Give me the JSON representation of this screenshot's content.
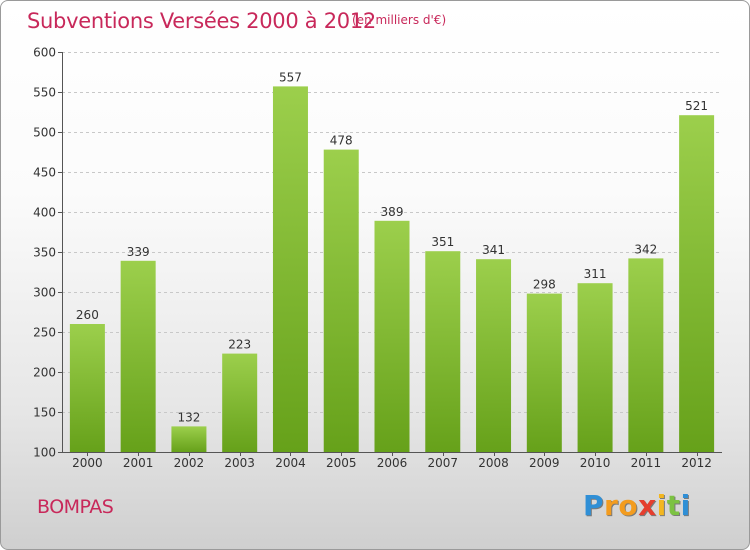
{
  "chart_data": {
    "type": "bar",
    "title": "Subventions Versées 2000 à 2012",
    "subtitle": "(en milliers d'€)",
    "categories": [
      "2000",
      "2001",
      "2002",
      "2003",
      "2004",
      "2005",
      "2006",
      "2007",
      "2008",
      "2009",
      "2010",
      "2011",
      "2012"
    ],
    "values": [
      260,
      339,
      132,
      223,
      557,
      478,
      389,
      351,
      341,
      298,
      311,
      342,
      521
    ],
    "ylim": [
      100,
      600
    ],
    "yticks": [
      100,
      150,
      200,
      250,
      300,
      350,
      400,
      450,
      500,
      550,
      600
    ],
    "grid": true,
    "bar_color_top": "#9ccf4c",
    "bar_color_bottom": "#66a11a"
  },
  "place_name": "BOMPAS",
  "logo": {
    "text": "Proxiti",
    "letters": [
      "P",
      "r",
      "o",
      "x",
      "i",
      "t",
      "i"
    ]
  }
}
